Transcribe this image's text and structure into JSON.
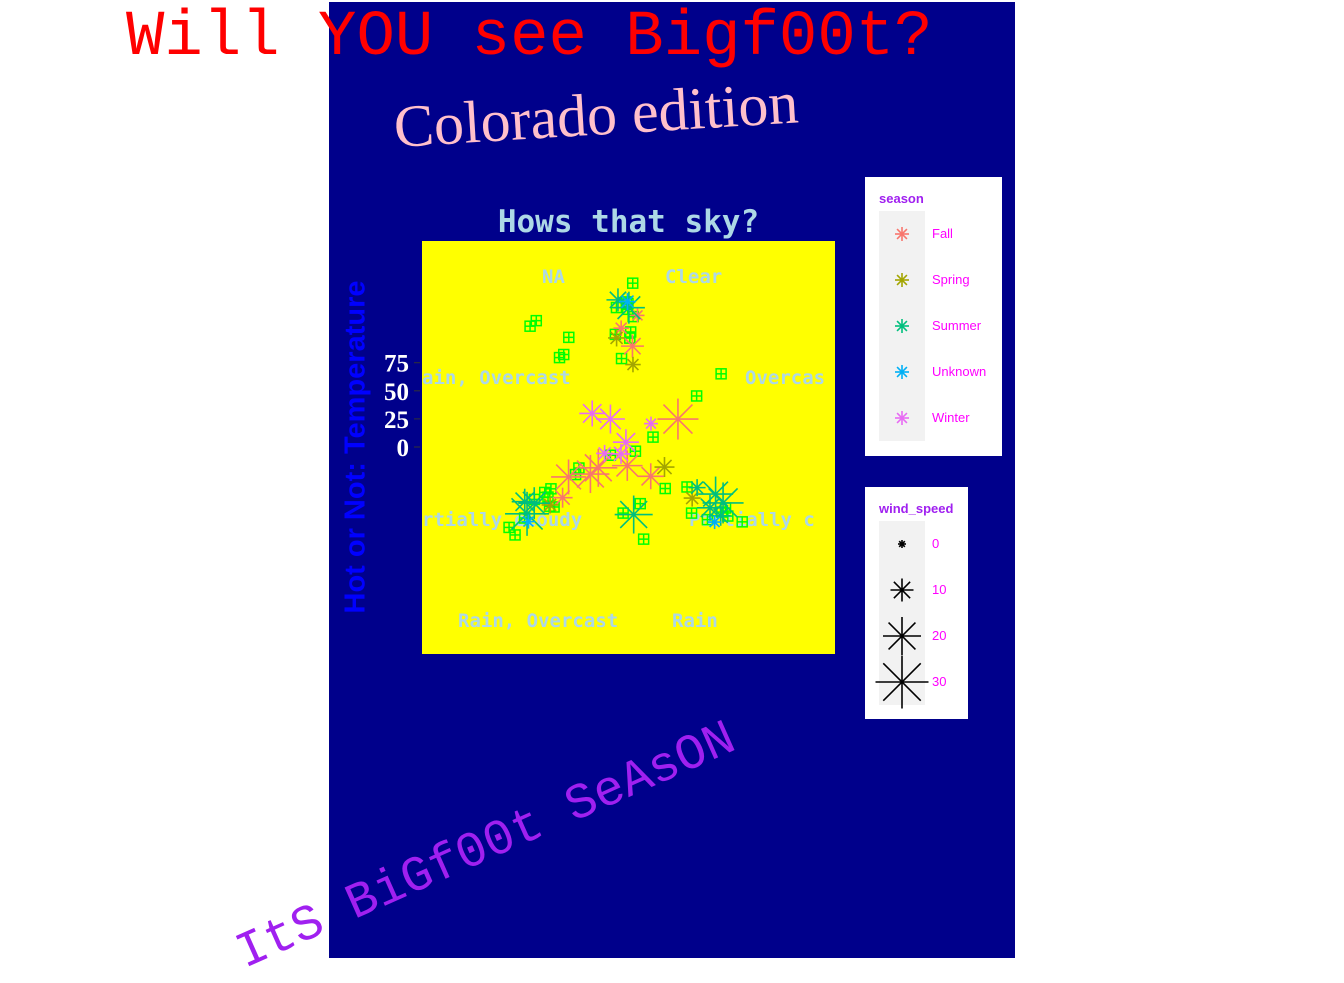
{
  "header": {
    "title": "Will YOU see Bigf00t?",
    "subtitle": "Colorado edition",
    "caption": "ItS BiGf00t SeAsON"
  },
  "colors": {
    "page_background": "#FFFFFF",
    "plot_background": "#00008B",
    "panel_background": "#FFFF00",
    "title": "#FF0000",
    "subtitle": "#FFC0CB",
    "caption": "#A020F0",
    "plot_title": "#ADD8E6",
    "y_axis_title": "#0000FF",
    "point_fill_markers": "#00FF00"
  },
  "chart_data": {
    "type": "scatter",
    "coord": "polar",
    "title": "Hows that sky?",
    "xlabel": "",
    "ylabel": "Hot or Not: Temperature",
    "y_ticks": [
      0,
      25,
      50,
      75
    ],
    "theta_categories": [
      "Clear",
      "Overcast",
      "Partially cloudy",
      "Rain",
      "Rain, Overcast",
      "Rain, Partially cloudy",
      "NA"
    ],
    "theta_labels_printed": [
      "NA",
      "Clear",
      "ain, Overcast",
      "Overcas",
      "rtially cloudy",
      "Partially c",
      "Rain, Overcast",
      "Rain"
    ],
    "marker_shape": "asterisk",
    "legends": {
      "season": {
        "title": "season",
        "items": [
          {
            "label": "Fall",
            "color": "#F8766D"
          },
          {
            "label": "Spring",
            "color": "#A3A500"
          },
          {
            "label": "Summer",
            "color": "#00BF7D"
          },
          {
            "label": "Unknown",
            "color": "#00B0F6"
          },
          {
            "label": "Winter",
            "color": "#E76BF3"
          }
        ]
      },
      "wind_speed": {
        "title": "wind_speed",
        "items": [
          {
            "label": "0",
            "value": 0
          },
          {
            "label": "10",
            "value": 10
          },
          {
            "label": "20",
            "value": 20
          },
          {
            "label": "30",
            "value": 30
          }
        ]
      }
    },
    "series": [
      {
        "name": "Fall",
        "points": [
          {
            "cat": "Clear",
            "temp": 60,
            "wind": 5
          },
          {
            "cat": "Clear",
            "temp": 55,
            "wind": 10
          },
          {
            "cat": "Overcast",
            "temp": 35,
            "wind": 22
          },
          {
            "cat": "Rain, Overcast",
            "temp": 30,
            "wind": 18
          },
          {
            "cat": "Rain, Partially cloudy",
            "temp": 20,
            "wind": 20
          },
          {
            "cat": "Rain, Partially cloudy",
            "temp": 35,
            "wind": 8
          },
          {
            "cat": "Rain",
            "temp": 5,
            "wind": 15
          },
          {
            "cat": "Rain, Overcast",
            "temp": 25,
            "wind": 20
          },
          {
            "cat": "Partially cloudy",
            "temp": 20,
            "wind": 12
          },
          {
            "cat": "Clear",
            "temp": 65,
            "wind": 4
          }
        ]
      },
      {
        "name": "Spring",
        "points": [
          {
            "cat": "Clear",
            "temp": 52,
            "wind": 6
          },
          {
            "cat": "Clear",
            "temp": 45,
            "wind": 5
          },
          {
            "cat": "Partially cloudy",
            "temp": 38,
            "wind": 6
          },
          {
            "cat": "Rain, Partially cloudy",
            "temp": 45,
            "wind": 6
          },
          {
            "cat": "Partially cloudy",
            "temp": 28,
            "wind": 8
          }
        ]
      },
      {
        "name": "Summer",
        "points": [
          {
            "cat": "Clear",
            "temp": 70,
            "wind": 10
          },
          {
            "cat": "Clear",
            "temp": 76,
            "wind": 16
          },
          {
            "cat": "Partially cloudy",
            "temp": 50,
            "wind": 18
          },
          {
            "cat": "Partially cloudy",
            "temp": 60,
            "wind": 22
          },
          {
            "cat": "Partially cloudy",
            "temp": 55,
            "wind": 12
          },
          {
            "cat": "Partially cloudy",
            "temp": 65,
            "wind": 8
          },
          {
            "cat": "Rain, Partially cloudy",
            "temp": 55,
            "wind": 16
          },
          {
            "cat": "Rain, Partially cloudy",
            "temp": 68,
            "wind": 24
          },
          {
            "cat": "Rain, Partially cloudy",
            "temp": 60,
            "wind": 12
          },
          {
            "cat": "Rain",
            "temp": 40,
            "wind": 20
          },
          {
            "cat": "Partially cloudy",
            "temp": 45,
            "wind": 6
          }
        ]
      },
      {
        "name": "Unknown",
        "points": [
          {
            "cat": "Clear",
            "temp": 74,
            "wind": 6
          },
          {
            "cat": "Partially cloudy",
            "temp": 62,
            "wind": 4
          },
          {
            "cat": "Rain, Partially cloudy",
            "temp": 62,
            "wind": 4
          }
        ]
      },
      {
        "name": "Winter",
        "points": [
          {
            "cat": "NA",
            "temp": 28,
            "wind": 12
          },
          {
            "cat": "NA",
            "temp": 20,
            "wind": 14
          },
          {
            "cat": "Overcast",
            "temp": 18,
            "wind": 4
          },
          {
            "cat": "Overcast",
            "temp": 2,
            "wind": 8
          },
          {
            "cat": "Partially cloudy",
            "temp": 5,
            "wind": 12
          },
          {
            "cat": "Rain, Overcast",
            "temp": 10,
            "wind": 6
          }
        ]
      }
    ],
    "fill_markers": {
      "shape": "square-cross",
      "color": "#00FF00",
      "points": [
        {
          "cat": "Clear",
          "temp": 72
        },
        {
          "cat": "Clear",
          "temp": 68
        },
        {
          "cat": "Clear",
          "temp": 75
        },
        {
          "cat": "Clear",
          "temp": 64
        },
        {
          "cat": "Clear",
          "temp": 58
        },
        {
          "cat": "Clear",
          "temp": 50
        },
        {
          "cat": "Clear",
          "temp": 78
        },
        {
          "cat": "Clear",
          "temp": 70
        },
        {
          "cat": "Clear",
          "temp": 62
        },
        {
          "cat": "Clear",
          "temp": 56
        },
        {
          "cat": "NA",
          "temp": 72
        },
        {
          "cat": "NA",
          "temp": 68
        },
        {
          "cat": "NA",
          "temp": 76
        },
        {
          "cat": "NA",
          "temp": 64
        },
        {
          "cat": "NA",
          "temp": 58
        },
        {
          "cat": "Overcast",
          "temp": 40
        },
        {
          "cat": "Overcast",
          "temp": 22
        },
        {
          "cat": "Rain, Overcast",
          "temp": 32
        },
        {
          "cat": "Rain, Overcast",
          "temp": 12
        },
        {
          "cat": "Partially cloudy",
          "temp": 30
        },
        {
          "cat": "Partially cloudy",
          "temp": 40
        },
        {
          "cat": "Partially cloudy",
          "temp": 48
        },
        {
          "cat": "Partially cloudy",
          "temp": 55
        },
        {
          "cat": "Partially cloudy",
          "temp": 62
        },
        {
          "cat": "Partially cloudy",
          "temp": 70
        },
        {
          "cat": "Partially cloudy",
          "temp": 58
        },
        {
          "cat": "Partially cloudy",
          "temp": 66
        },
        {
          "cat": "Rain, Partially cloudy",
          "temp": 30
        },
        {
          "cat": "Rain, Partially cloudy",
          "temp": 40
        },
        {
          "cat": "Rain, Partially cloudy",
          "temp": 50
        },
        {
          "cat": "Rain, Partially cloudy",
          "temp": 58
        },
        {
          "cat": "Rain, Partially cloudy",
          "temp": 64
        },
        {
          "cat": "Rain, Partially cloudy",
          "temp": 70
        },
        {
          "cat": "Rain, Partially cloudy",
          "temp": 74
        },
        {
          "cat": "Rain, Partially cloudy",
          "temp": 48
        },
        {
          "cat": "Rain, Partially cloudy",
          "temp": 55
        },
        {
          "cat": "Rain",
          "temp": 30
        },
        {
          "cat": "Rain",
          "temp": 22
        },
        {
          "cat": "Rain",
          "temp": 42
        },
        {
          "cat": "Clear",
          "temp": 0
        },
        {
          "cat": "Rain, Overcast",
          "temp": 60
        },
        {
          "cat": "Overcast",
          "temp": 62
        }
      ]
    }
  }
}
